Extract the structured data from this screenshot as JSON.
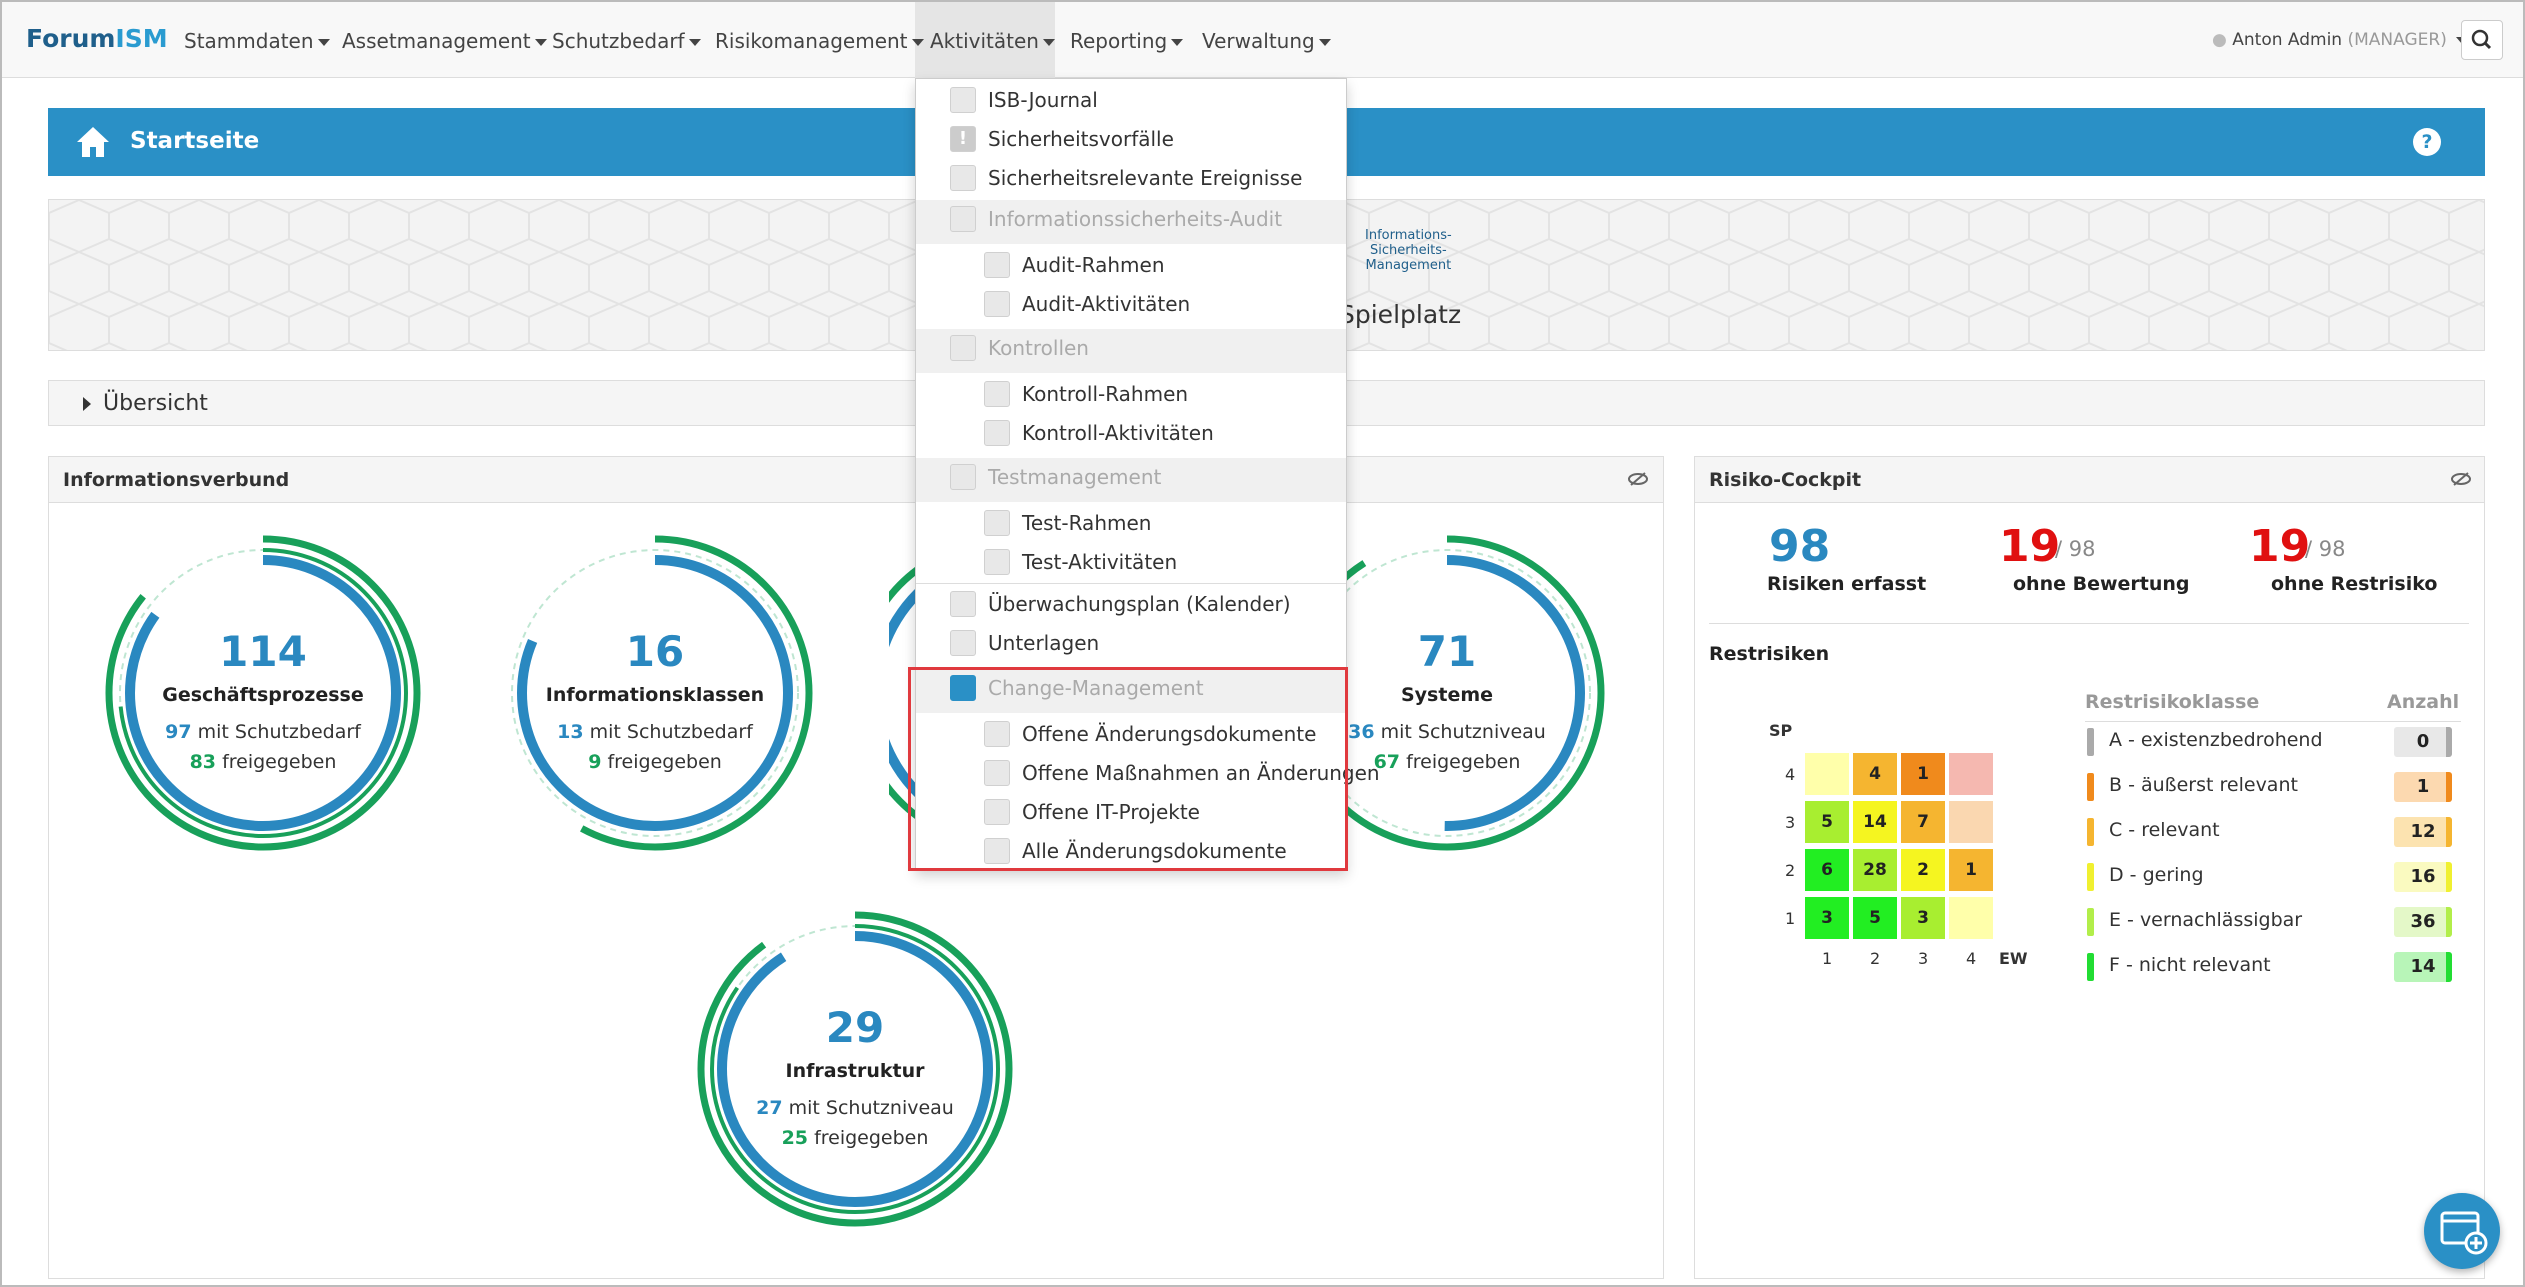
{
  "brand": {
    "part1": "Forum",
    "part2": "ISM"
  },
  "nav": {
    "items": [
      "Stammdaten",
      "Assetmanagement",
      "Schutzbedarf",
      "Risikomanagement",
      "Aktivitäten",
      "Reporting",
      "Verwaltung"
    ],
    "user": "Anton Admin",
    "role": "(MANAGER)"
  },
  "header": {
    "title": "Startseite",
    "help": "?"
  },
  "banner": {
    "logo_line1": "Informations-",
    "logo_line2": "Sicherheits-",
    "logo_line3": "Management",
    "title_fragment": "Spielplatz"
  },
  "overview": {
    "label": "Übersicht"
  },
  "info_panel": {
    "title": "Informationsverbund",
    "circles": [
      {
        "num": "114",
        "label": "Geschäftsprozesse",
        "a_num": "97",
        "a_text": " mit Schutzbedarf",
        "b_num": "83",
        "b_text": " freigegeben"
      },
      {
        "num": "16",
        "label": "Informationsklassen",
        "a_num": "13",
        "a_text": " mit Schutzbedarf",
        "b_num": "9",
        "b_text": " freigegeben"
      },
      {
        "num": "71",
        "label": "Systeme",
        "a_num": "36",
        "a_text": " mit Schutzniveau",
        "b_num": "67",
        "b_text": " freigegeben"
      },
      {
        "num": "29",
        "label": "Infrastruktur",
        "a_num": "27",
        "a_text": " mit Schutzniveau",
        "b_num": "25",
        "b_text": " freigegeben"
      }
    ]
  },
  "dropdown": {
    "isb": "ISB-Journal",
    "vorfaelle": "Sicherheitsvorfälle",
    "ereignisse": "Sicherheitsrelevante Ereignisse",
    "audit_sec": "Informationssicherheits-Audit",
    "audit_rahmen": "Audit-Rahmen",
    "audit_akt": "Audit-Aktivitäten",
    "kontrollen_sec": "Kontrollen",
    "kontroll_rahmen": "Kontroll-Rahmen",
    "kontroll_akt": "Kontroll-Aktivitäten",
    "test_sec": "Testmanagement",
    "test_rahmen": "Test-Rahmen",
    "test_akt": "Test-Aktivitäten",
    "ueberwachung": "Überwachungsplan (Kalender)",
    "unterlagen": "Unterlagen",
    "change_sec": "Change-Management",
    "offene_dok": "Offene Änderungsdokumente",
    "offene_mass": "Offene Maßnahmen an Änderungen",
    "offene_it": "Offene IT-Projekte",
    "alle_dok": "Alle Änderungsdokumente"
  },
  "risk": {
    "title": "Risiko-Cockpit",
    "erfasst_num": "98",
    "erfasst_lbl": "Risiken erfasst",
    "ohne_bew_num": "19",
    "ohne_bew_total": "/ 98",
    "ohne_bew_lbl": "ohne Bewertung",
    "ohne_rest_num": "19",
    "ohne_rest_total": "/ 98",
    "ohne_rest_lbl": "ohne Restrisiko",
    "restrisiken": "Restrisiken",
    "sp": "SP",
    "ew": "EW",
    "matrix_rows": [
      [
        "",
        "4",
        "1",
        ""
      ],
      [
        "5",
        "14",
        "7",
        ""
      ],
      [
        "6",
        "28",
        "2",
        "1"
      ],
      [
        "3",
        "5",
        "3",
        ""
      ]
    ],
    "y_ticks": [
      "4",
      "3",
      "2",
      "1"
    ],
    "x_ticks": [
      "1",
      "2",
      "3",
      "4"
    ],
    "class_header": "Restrisikoklasse",
    "count_header": "Anzahl",
    "classes": [
      {
        "label": "A - existenzbedrohend",
        "count": "0",
        "color": "#aaaaaa"
      },
      {
        "label": "B - äußerst relevant",
        "count": "1",
        "color": "#f08a1c"
      },
      {
        "label": "C - relevant",
        "count": "12",
        "color": "#f5b530"
      },
      {
        "label": "D - gering",
        "count": "16",
        "color": "#f0f030"
      },
      {
        "label": "E - vernachlässigbar",
        "count": "36",
        "color": "#b2ee4a"
      },
      {
        "label": "F - nicht relevant",
        "count": "14",
        "color": "#22dd33"
      }
    ]
  }
}
